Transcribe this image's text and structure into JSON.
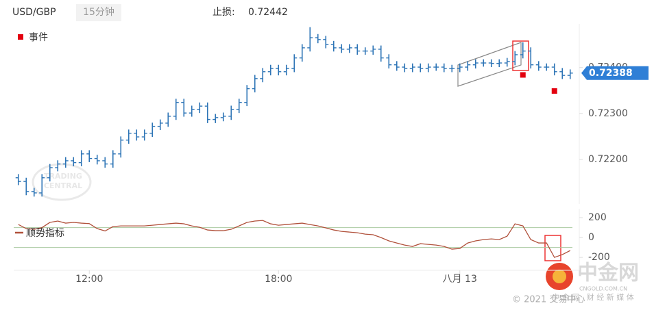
{
  "header": {
    "symbol": "USD/GBP",
    "interval": "15分钟",
    "stop_label": "止损:",
    "stop_value": 0.72442
  },
  "watermark": {
    "logo_top": "TRADING",
    "logo_bottom": "CENTRAL",
    "brand": "中金网",
    "brand_url": "CNGOLD.COM.CN",
    "brand_slogan": "中 金 网 · 财 经 新 媒 体",
    "copyright": "© 2021 交易中心"
  },
  "chart_data": [
    {
      "type": "ohlc",
      "color": "#2e75b6",
      "open": [
        0.7216,
        0.72152,
        0.7213,
        0.72127,
        0.7216,
        0.72182,
        0.7219,
        0.72197,
        0.72193,
        0.72212,
        0.72202,
        0.72197,
        0.7219,
        0.72212,
        0.72242,
        0.72257,
        0.72249,
        0.72257,
        0.72272,
        0.72279,
        0.72294,
        0.72324,
        0.72301,
        0.72309,
        0.72316,
        0.72287,
        0.72291,
        0.72294,
        0.72309,
        0.72324,
        0.72354,
        0.72376,
        0.72391,
        0.72398,
        0.72391,
        0.72398,
        0.72421,
        0.72443,
        0.72465,
        0.72461,
        0.7245,
        0.72443,
        0.7244,
        0.72443,
        0.72436,
        0.72436,
        0.7244,
        0.72421,
        0.72406,
        0.72401,
        0.72398,
        0.72401,
        0.72398,
        0.72401,
        0.72401,
        0.72398,
        0.72398,
        0.72401,
        0.72406,
        0.7241,
        0.7241,
        0.72409,
        0.7241,
        0.72413,
        0.72428,
        0.72436,
        0.72406,
        0.72401,
        0.72401,
        0.72391,
        0.72383
      ],
      "high": [
        0.72168,
        0.7216,
        0.72138,
        0.72168,
        0.7219,
        0.72198,
        0.72205,
        0.72205,
        0.7222,
        0.7222,
        0.7221,
        0.72205,
        0.7222,
        0.7225,
        0.72265,
        0.72265,
        0.72265,
        0.7228,
        0.72287,
        0.72302,
        0.72332,
        0.72332,
        0.72317,
        0.72324,
        0.72324,
        0.72299,
        0.72302,
        0.72317,
        0.72332,
        0.72362,
        0.72384,
        0.72399,
        0.72406,
        0.72406,
        0.72406,
        0.72429,
        0.72451,
        0.72488,
        0.72473,
        0.72469,
        0.72458,
        0.72451,
        0.72451,
        0.72451,
        0.72444,
        0.72448,
        0.72448,
        0.72429,
        0.72414,
        0.72409,
        0.72409,
        0.72409,
        0.72409,
        0.72409,
        0.72409,
        0.72406,
        0.72409,
        0.72414,
        0.72418,
        0.72418,
        0.72418,
        0.72418,
        0.72421,
        0.72436,
        0.72455,
        0.72444,
        0.72414,
        0.72409,
        0.72409,
        0.72399,
        0.72396
      ],
      "low": [
        0.72144,
        0.72122,
        0.72119,
        0.72119,
        0.72152,
        0.72174,
        0.72182,
        0.72185,
        0.72185,
        0.72194,
        0.72189,
        0.72182,
        0.72182,
        0.72204,
        0.72234,
        0.72241,
        0.72241,
        0.72249,
        0.72264,
        0.72271,
        0.72286,
        0.72293,
        0.72293,
        0.72301,
        0.72279,
        0.72279,
        0.72283,
        0.72286,
        0.72301,
        0.72316,
        0.72346,
        0.72368,
        0.72383,
        0.72383,
        0.72383,
        0.7239,
        0.72413,
        0.72435,
        0.72453,
        0.72442,
        0.72435,
        0.72432,
        0.72432,
        0.72428,
        0.72428,
        0.72428,
        0.72413,
        0.72398,
        0.72393,
        0.7239,
        0.7239,
        0.7239,
        0.7239,
        0.72393,
        0.7239,
        0.7239,
        0.7239,
        0.72393,
        0.72398,
        0.72402,
        0.72401,
        0.72401,
        0.72402,
        0.72405,
        0.7242,
        0.72398,
        0.72393,
        0.72393,
        0.72383,
        0.72375,
        0.72375
      ],
      "close": [
        0.72152,
        0.7213,
        0.72127,
        0.7216,
        0.72182,
        0.7219,
        0.72197,
        0.72193,
        0.72212,
        0.72202,
        0.72197,
        0.7219,
        0.72212,
        0.72242,
        0.72257,
        0.72249,
        0.72257,
        0.72272,
        0.72279,
        0.72294,
        0.72324,
        0.72301,
        0.72309,
        0.72316,
        0.72287,
        0.72291,
        0.72294,
        0.72309,
        0.72324,
        0.72354,
        0.72376,
        0.72391,
        0.72398,
        0.72391,
        0.72398,
        0.72421,
        0.72443,
        0.72465,
        0.72461,
        0.7245,
        0.72443,
        0.7244,
        0.72443,
        0.72436,
        0.72436,
        0.7244,
        0.72421,
        0.72406,
        0.72401,
        0.72398,
        0.72401,
        0.72398,
        0.72401,
        0.72401,
        0.72398,
        0.72398,
        0.72401,
        0.72406,
        0.7241,
        0.7241,
        0.72409,
        0.7241,
        0.72413,
        0.72428,
        0.72436,
        0.72406,
        0.72401,
        0.72401,
        0.72391,
        0.72383,
        0.72388
      ],
      "xlim": [
        -0.5,
        70.5
      ],
      "xticks": [
        {
          "value": 9,
          "label": "12:00"
        },
        {
          "value": 33,
          "label": "18:00"
        },
        {
          "value": 56,
          "label": "八月 13"
        }
      ],
      "ylim": [
        0.72103,
        0.72495
      ],
      "yticks": [
        {
          "value": 0.722,
          "label": "0.72200"
        },
        {
          "value": 0.723,
          "label": "0.72300"
        },
        {
          "value": 0.724,
          "label": "0.72400"
        }
      ],
      "last_value": 0.72388,
      "last_color": "#2f7fd6",
      "events": {
        "name": "事件",
        "color": "#e3000f",
        "x": [
          64,
          68
        ],
        "values": [
          0.72384,
          0.72349
        ]
      }
    },
    {
      "type": "line",
      "name": "顺势指标",
      "color": "#b0503a",
      "values": [
        131,
        90,
        83,
        100,
        152,
        166,
        145,
        152,
        145,
        140,
        90,
        66,
        110,
        117,
        117,
        117,
        117,
        124,
        131,
        138,
        145,
        138,
        117,
        103,
        76,
        69,
        69,
        83,
        117,
        152,
        166,
        172,
        138,
        124,
        131,
        138,
        145,
        131,
        117,
        97,
        76,
        62,
        55,
        48,
        34,
        28,
        0,
        -34,
        -55,
        -76,
        -90,
        -62,
        -69,
        -76,
        -90,
        -117,
        -110,
        -55,
        -34,
        -21,
        -14,
        -21,
        14,
        138,
        117,
        -21,
        -55,
        -55,
        -200,
        -172,
        -131
      ],
      "xlim": [
        -0.5,
        70.5
      ],
      "ylim": [
        -330,
        290
      ],
      "yticks": [
        -200,
        0,
        200
      ],
      "levels": [
        -100,
        100
      ],
      "level_color": "#a9c9a0"
    }
  ]
}
